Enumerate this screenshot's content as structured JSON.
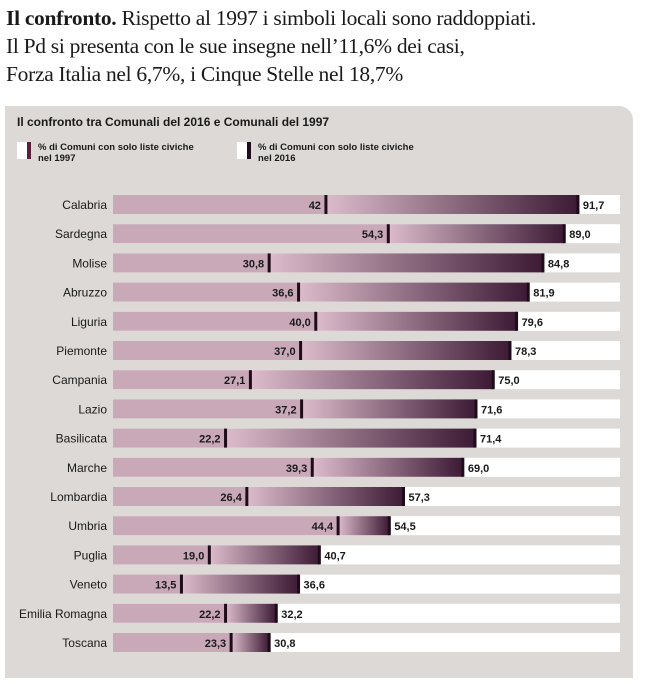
{
  "headline": {
    "lead": "Il confronto.",
    "line1_rest": "Rispetto al 1997 i simboli locali sono raddoppiati.",
    "line2": "Il Pd si presenta con le sue insegne nell’11,6% dei casi,",
    "line3": "Forza Italia nel 6,7%, i Cinque Stelle nel 18,7%"
  },
  "colors": {
    "panel": "#dcd9d6",
    "bar_white": "#ffffff",
    "bar_pale": "#c9a9b8",
    "bar_dark": "#3d1a35",
    "marker": "#1f0c1a"
  },
  "chart_data": {
    "type": "bar",
    "orientation": "horizontal",
    "title": "Il confronto tra Comunali del 2016 e Comunali del 1997",
    "legend_placement": "top-left",
    "categories": [
      "Calabria",
      "Sardegna",
      "Molise",
      "Abruzzo",
      "Liguria",
      "Piemonte",
      "Campania",
      "Lazio",
      "Basilicata",
      "Marche",
      "Lombardia",
      "Umbria",
      "Puglia",
      "Veneto",
      "Emilia Romagna",
      "Toscana"
    ],
    "series": [
      {
        "name": "% di Comuni con solo liste civiche nel 1997",
        "values": [
          42,
          54.3,
          30.8,
          36.6,
          40.0,
          37.0,
          27.1,
          37.2,
          22.2,
          39.3,
          26.4,
          44.4,
          19.0,
          13.5,
          22.2,
          23.3
        ],
        "labels": [
          "42",
          "54,3",
          "30,8",
          "36,6",
          "40,0",
          "37,0",
          "27,1",
          "37,2",
          "22,2",
          "39,3",
          "26,4",
          "44,4",
          "19,0",
          "13,5",
          "22,2",
          "23,3"
        ]
      },
      {
        "name": "% di Comuni con solo liste civiche nel 2016",
        "values": [
          91.7,
          89.0,
          84.8,
          81.9,
          79.6,
          78.3,
          75.0,
          71.6,
          71.4,
          69.0,
          57.3,
          54.5,
          40.7,
          36.6,
          32.2,
          30.8
        ],
        "labels": [
          "91,7",
          "89,0",
          "84,8",
          "81,9",
          "79,6",
          "78,3",
          "75,0",
          "71,6",
          "71,4",
          "69,0",
          "57,3",
          "54,5",
          "40,7",
          "36,6",
          "32,2",
          "30,8"
        ]
      }
    ],
    "xlim": [
      0,
      100
    ],
    "grid": false
  }
}
